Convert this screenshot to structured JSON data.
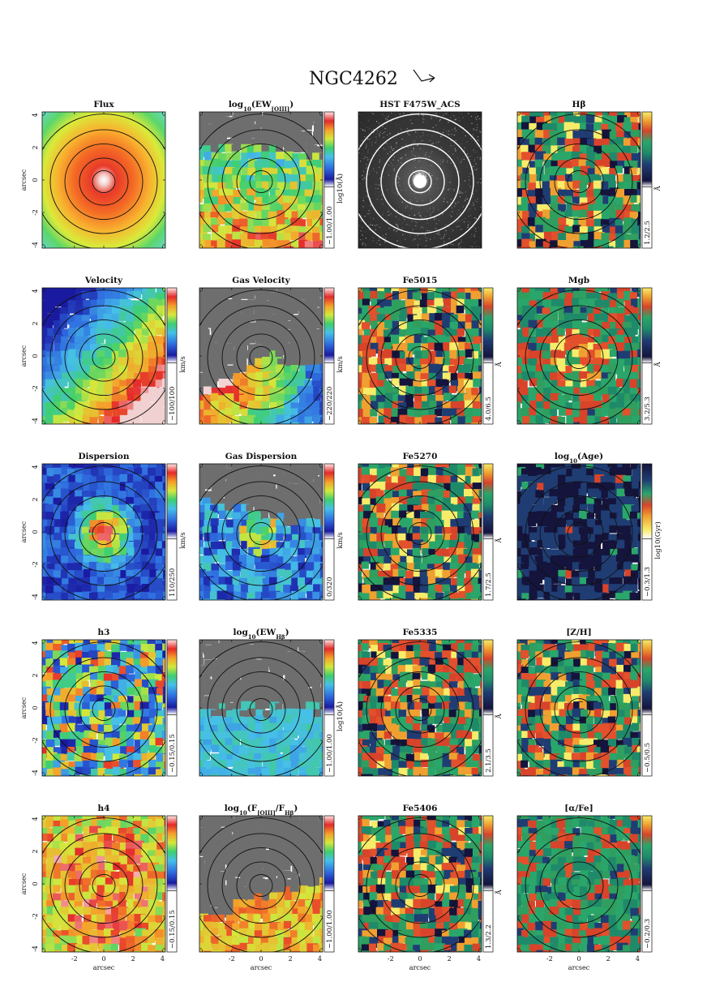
{
  "figure": {
    "title": "NGC4262",
    "arrow_icon": "orientation-arrow-icon",
    "axis_label": "arcsec"
  },
  "chart_data": {
    "type": "heatmap",
    "title": "NGC4262",
    "x_ticks": [
      "-2",
      "0",
      "2",
      "4"
    ],
    "y_ticks": [
      "4",
      "2",
      "0",
      "-2",
      "-4"
    ],
    "xlabel": "arcsec",
    "ylabel": "arcsec",
    "xlim": [
      -4.2,
      4.2
    ],
    "ylim": [
      -4.2,
      4.2
    ],
    "panels": [
      {
        "id": "flux",
        "title": "Flux",
        "scheme": "flux",
        "colorbar": false,
        "range": "",
        "unit": ""
      },
      {
        "id": "ew-oiii",
        "title": "log10(EW[OIII])",
        "title_main": "log",
        "title_sub": "10",
        "title_rest": "(EW",
        "title_sub2": "[OIII]",
        "title_end": ")",
        "scheme": "gas",
        "colorbar": true,
        "cbar_style": "rainbow",
        "range": "−1.00/1.00",
        "unit": "log10(Å)"
      },
      {
        "id": "hst",
        "title": "HST F475W_ACS",
        "scheme": "hst",
        "colorbar": false,
        "range": "",
        "unit": ""
      },
      {
        "id": "hbeta",
        "title": "Hβ",
        "scheme": "index",
        "colorbar": true,
        "cbar_style": "index",
        "range": "1.2/2.5",
        "unit": "Å"
      },
      {
        "id": "velocity",
        "title": "Velocity",
        "scheme": "velocity",
        "colorbar": true,
        "cbar_style": "rainbow",
        "range": "−100/100",
        "unit": "km/s"
      },
      {
        "id": "gas-velocity",
        "title": "Gas Velocity",
        "scheme": "gasvel",
        "colorbar": true,
        "cbar_style": "rainbow",
        "range": "−220/220",
        "unit": "km/s"
      },
      {
        "id": "fe5015",
        "title": "Fe5015",
        "scheme": "index",
        "colorbar": true,
        "cbar_style": "index",
        "range": "4.0/6.5",
        "unit": "Å"
      },
      {
        "id": "mgb",
        "title": "Mgb",
        "scheme": "mgb",
        "colorbar": true,
        "cbar_style": "index",
        "range": "3.2/5.3",
        "unit": "Å"
      },
      {
        "id": "dispersion",
        "title": "Dispersion",
        "scheme": "dispersion",
        "colorbar": true,
        "cbar_style": "rainbow",
        "range": "110/250",
        "unit": "km/s"
      },
      {
        "id": "gas-dispersion",
        "title": "Gas Dispersion",
        "scheme": "gasdisp",
        "colorbar": true,
        "cbar_style": "rainbow",
        "range": "0/320",
        "unit": "km/s"
      },
      {
        "id": "fe5270",
        "title": "Fe5270",
        "scheme": "index",
        "colorbar": true,
        "cbar_style": "index",
        "range": "1.7/2.5",
        "unit": "Å"
      },
      {
        "id": "age",
        "title": "log10(Age)",
        "title_main": "log",
        "title_sub": "10",
        "title_rest": "(Age)",
        "scheme": "age",
        "colorbar": true,
        "cbar_style": "age",
        "range": "−0.3/1.3",
        "unit": "log10(Gyr)"
      },
      {
        "id": "h3",
        "title": "h3",
        "scheme": "h3",
        "colorbar": true,
        "cbar_style": "rainbow",
        "range": "−0.15/0.15",
        "unit": ""
      },
      {
        "id": "ew-hbeta",
        "title": "log10(EWHβ)",
        "title_main": "log",
        "title_sub": "10",
        "title_rest": "(EW",
        "title_sub2": "Hβ",
        "title_end": ")",
        "scheme": "gaslow",
        "colorbar": true,
        "cbar_style": "rainbow",
        "range": "−1.00/1.00",
        "unit": "log10(Å)"
      },
      {
        "id": "fe5335",
        "title": "Fe5335",
        "scheme": "index",
        "colorbar": true,
        "cbar_style": "index",
        "range": "2.1/3.5",
        "unit": "Å"
      },
      {
        "id": "zh",
        "title": "[Z/H]",
        "scheme": "index",
        "colorbar": true,
        "cbar_style": "index",
        "range": "−0.5/0.5",
        "unit": ""
      },
      {
        "id": "h4",
        "title": "h4",
        "scheme": "h4",
        "colorbar": true,
        "cbar_style": "rainbow",
        "range": "−0.15/0.15",
        "unit": ""
      },
      {
        "id": "oiii-hbeta",
        "title": "log10(F[OIII]/FHβ)",
        "title_main": "log",
        "title_sub": "10",
        "title_rest": "(F",
        "title_sub2": "[OIII]",
        "title_mid": "/F",
        "title_sub3": "Hβ",
        "title_end": ")",
        "scheme": "ratio",
        "colorbar": true,
        "cbar_style": "rainbow",
        "range": "−1.00/1.00",
        "unit": ""
      },
      {
        "id": "fe5406",
        "title": "Fe5406",
        "scheme": "index",
        "colorbar": true,
        "cbar_style": "index",
        "range": "1.3/2.2",
        "unit": "Å"
      },
      {
        "id": "alpha-fe",
        "title": "[α/Fe]",
        "scheme": "alpha",
        "colorbar": true,
        "cbar_style": "index",
        "range": "−0.2/0.3",
        "unit": ""
      }
    ],
    "grid": {
      "rows": 5,
      "cols": 4
    }
  }
}
